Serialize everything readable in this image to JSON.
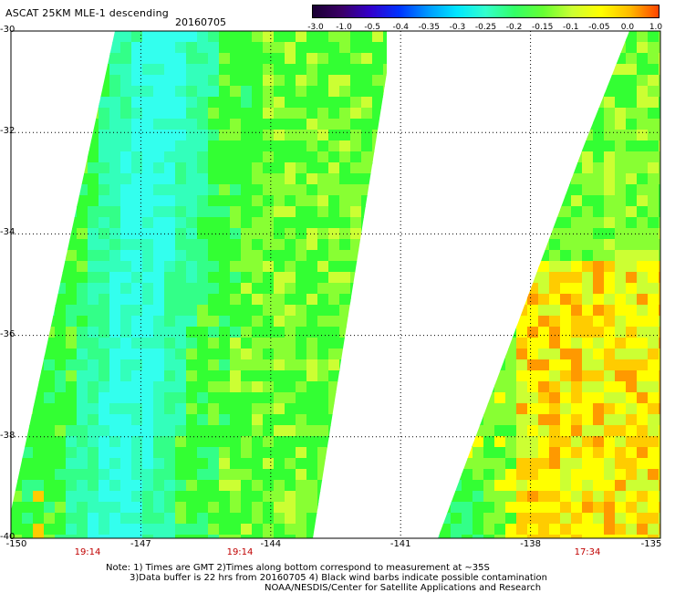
{
  "header": {
    "title": "ASCAT 25KM MLE-1 descending",
    "date": "20160705"
  },
  "colorbar": {
    "labels": [
      "-3.0",
      "-1.0",
      "-0.5",
      "-0.4",
      "-0.35",
      "-0.3",
      "-0.25",
      "-0.2",
      "-0.15",
      "-0.1",
      "-0.05",
      "0.0",
      "1.0"
    ],
    "colors": [
      "#1a0033",
      "#3a0066",
      "#3300cc",
      "#0033ff",
      "#0099ff",
      "#00e6ff",
      "#33ffcc",
      "#33ff66",
      "#66ff33",
      "#ccff33",
      "#ffff00",
      "#ffbb00",
      "#ff4400"
    ]
  },
  "axes": {
    "y_ticks": [
      "-30",
      "-32",
      "-34",
      "-36",
      "-38",
      "-40"
    ],
    "x_ticks": [
      "-150",
      "-147",
      "-144",
      "-141",
      "-138",
      "-135"
    ],
    "pass_times": [
      "19:14",
      "19:14",
      "17:34"
    ]
  },
  "swath": {
    "palette": {
      "cyan": "#33ffee",
      "aqua": "#33ffbb",
      "mint": "#33ff88",
      "green": "#33ff33",
      "lime": "#88ff33",
      "yellowgreen": "#ccff33",
      "yellow": "#ffff00",
      "orange": "#ffcc00",
      "darkorange": "#ff9900"
    }
  },
  "notes": {
    "line1": "Note: 1) Times are GMT 2)Times along bottom correspond to measurement at ~35S",
    "line2": "3)Data buffer is 22 hrs from 20160705 4) Black wind barbs indicate possible contamination",
    "line3": "NOAA/NESDIS/Center for Satellite Applications and Research"
  }
}
